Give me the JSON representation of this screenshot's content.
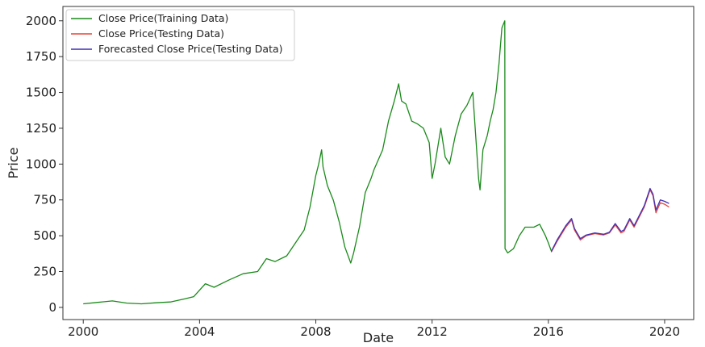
{
  "chart_data": {
    "type": "line",
    "title": "",
    "xlabel": "Date",
    "ylabel": "Price",
    "xlim": [
      1999.3,
      2021.0
    ],
    "ylim": [
      -85,
      2100
    ],
    "x_ticks": [
      2000,
      2004,
      2008,
      2012,
      2016,
      2020
    ],
    "x_tick_labels": [
      "2000",
      "2004",
      "2008",
      "2012",
      "2016",
      "2020"
    ],
    "y_ticks": [
      0,
      250,
      500,
      750,
      1000,
      1250,
      1500,
      1750,
      2000
    ],
    "y_tick_labels": [
      "0",
      "250",
      "500",
      "750",
      "1000",
      "1250",
      "1500",
      "1750",
      "2000"
    ],
    "grid": false,
    "legend_position": "top-left",
    "series": [
      {
        "name": "Close Price(Training Data)",
        "color": "#1a8a1a",
        "points": [
          [
            2000.0,
            25
          ],
          [
            2000.5,
            35
          ],
          [
            2001.0,
            45
          ],
          [
            2001.5,
            30
          ],
          [
            2002.0,
            25
          ],
          [
            2002.5,
            32
          ],
          [
            2003.0,
            38
          ],
          [
            2003.5,
            60
          ],
          [
            2003.8,
            75
          ],
          [
            2004.0,
            120
          ],
          [
            2004.2,
            165
          ],
          [
            2004.5,
            140
          ],
          [
            2005.0,
            190
          ],
          [
            2005.5,
            235
          ],
          [
            2006.0,
            250
          ],
          [
            2006.3,
            340
          ],
          [
            2006.6,
            320
          ],
          [
            2007.0,
            360
          ],
          [
            2007.3,
            450
          ],
          [
            2007.6,
            540
          ],
          [
            2007.8,
            700
          ],
          [
            2008.0,
            920
          ],
          [
            2008.1,
            1000
          ],
          [
            2008.2,
            1100
          ],
          [
            2008.25,
            980
          ],
          [
            2008.4,
            850
          ],
          [
            2008.6,
            750
          ],
          [
            2008.8,
            600
          ],
          [
            2009.0,
            420
          ],
          [
            2009.2,
            310
          ],
          [
            2009.3,
            380
          ],
          [
            2009.5,
            560
          ],
          [
            2009.7,
            800
          ],
          [
            2009.9,
            900
          ],
          [
            2010.0,
            960
          ],
          [
            2010.3,
            1100
          ],
          [
            2010.5,
            1300
          ],
          [
            2010.7,
            1440
          ],
          [
            2010.85,
            1560
          ],
          [
            2010.95,
            1440
          ],
          [
            2011.1,
            1420
          ],
          [
            2011.3,
            1300
          ],
          [
            2011.5,
            1280
          ],
          [
            2011.7,
            1250
          ],
          [
            2011.9,
            1150
          ],
          [
            2012.0,
            900
          ],
          [
            2012.1,
            1000
          ],
          [
            2012.3,
            1250
          ],
          [
            2012.45,
            1050
          ],
          [
            2012.6,
            1000
          ],
          [
            2012.8,
            1200
          ],
          [
            2013.0,
            1350
          ],
          [
            2013.2,
            1410
          ],
          [
            2013.4,
            1500
          ],
          [
            2013.5,
            1200
          ],
          [
            2013.6,
            900
          ],
          [
            2013.65,
            820
          ],
          [
            2013.75,
            1100
          ],
          [
            2013.9,
            1200
          ],
          [
            2014.0,
            1300
          ],
          [
            2014.1,
            1380
          ],
          [
            2014.2,
            1500
          ],
          [
            2014.3,
            1700
          ],
          [
            2014.4,
            1950
          ],
          [
            2014.5,
            2000
          ],
          [
            2014.51,
            410
          ],
          [
            2014.6,
            380
          ],
          [
            2014.8,
            410
          ],
          [
            2015.0,
            500
          ],
          [
            2015.2,
            560
          ],
          [
            2015.5,
            560
          ],
          [
            2015.7,
            580
          ],
          [
            2015.9,
            500
          ],
          [
            2016.0,
            450
          ],
          [
            2016.1,
            395
          ]
        ]
      },
      {
        "name": "Close Price(Testing Data)",
        "color": "#e8443a",
        "points": [
          [
            2016.1,
            385
          ],
          [
            2016.3,
            460
          ],
          [
            2016.6,
            560
          ],
          [
            2016.8,
            610
          ],
          [
            2016.9,
            540
          ],
          [
            2017.1,
            470
          ],
          [
            2017.3,
            500
          ],
          [
            2017.6,
            515
          ],
          [
            2017.9,
            505
          ],
          [
            2018.1,
            520
          ],
          [
            2018.3,
            575
          ],
          [
            2018.5,
            520
          ],
          [
            2018.6,
            530
          ],
          [
            2018.8,
            610
          ],
          [
            2018.95,
            560
          ],
          [
            2019.1,
            620
          ],
          [
            2019.3,
            700
          ],
          [
            2019.5,
            820
          ],
          [
            2019.6,
            780
          ],
          [
            2019.7,
            660
          ],
          [
            2019.85,
            730
          ],
          [
            2020.0,
            720
          ],
          [
            2020.15,
            700
          ]
        ]
      },
      {
        "name": "Forecasted Close Price(Testing Data)",
        "color": "#3f2fb5",
        "points": [
          [
            2016.1,
            390
          ],
          [
            2016.3,
            470
          ],
          [
            2016.6,
            570
          ],
          [
            2016.8,
            620
          ],
          [
            2016.9,
            550
          ],
          [
            2017.1,
            480
          ],
          [
            2017.3,
            505
          ],
          [
            2017.6,
            520
          ],
          [
            2017.9,
            510
          ],
          [
            2018.1,
            525
          ],
          [
            2018.3,
            585
          ],
          [
            2018.5,
            530
          ],
          [
            2018.6,
            540
          ],
          [
            2018.8,
            620
          ],
          [
            2018.95,
            570
          ],
          [
            2019.1,
            630
          ],
          [
            2019.3,
            710
          ],
          [
            2019.5,
            830
          ],
          [
            2019.6,
            790
          ],
          [
            2019.7,
            680
          ],
          [
            2019.85,
            750
          ],
          [
            2020.0,
            740
          ],
          [
            2020.15,
            725
          ]
        ]
      }
    ]
  }
}
